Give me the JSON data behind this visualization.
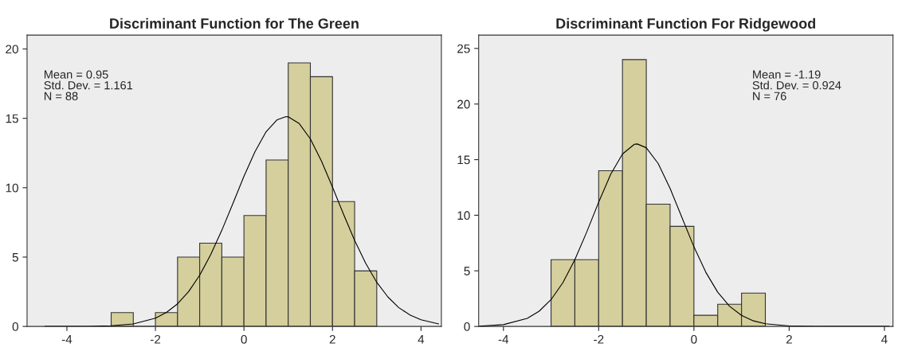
{
  "chart_data": [
    {
      "type": "histogram",
      "title": "Discriminant Function for The Green",
      "bins": [
        -3,
        -2.5,
        -2,
        -1.5,
        -1,
        -0.5,
        0,
        0.5,
        1,
        1.5,
        2,
        2.5,
        3
      ],
      "values": [
        1,
        0,
        1,
        5,
        6,
        5,
        8,
        12,
        19,
        18,
        9,
        4
      ],
      "color": "#d4cf9c",
      "xlim": [
        -4.9,
        4.46
      ],
      "ylim": [
        0,
        21
      ],
      "xticks": [
        -4,
        -2,
        0,
        2,
        4
      ],
      "yticks": [
        0,
        5,
        10,
        15,
        20
      ],
      "annotations": [
        "Mean = 0.95",
        "Std. Dev. = 1.161",
        "N = 88"
      ],
      "series": [
        {
          "type": "line",
          "color": "#000000",
          "x": [
            -4.5,
            -4,
            -3.5,
            -3,
            -2.5,
            -2,
            -1.75,
            -1.5,
            -1.25,
            -1,
            -0.75,
            -0.5,
            -0.25,
            0,
            0.25,
            0.5,
            0.75,
            0.95,
            1,
            1.25,
            1.5,
            1.75,
            2,
            2.25,
            2.5,
            2.75,
            3,
            3.25,
            3.5,
            3.75,
            4,
            4.4
          ],
          "values": [
            0,
            0,
            0.01,
            0.05,
            0.18,
            0.6,
            1.01,
            1.63,
            2.51,
            3.69,
            5.18,
            6.93,
            8.86,
            10.82,
            12.6,
            14.03,
            14.9,
            15.12,
            15.11,
            14.62,
            13.52,
            11.93,
            10.05,
            8.08,
            6.2,
            4.55,
            3.18,
            2.13,
            1.35,
            0.83,
            0.48,
            0.18
          ]
        }
      ]
    },
    {
      "type": "histogram",
      "title": "Discriminant Function For Ridgewood",
      "bins": [
        -3,
        -2.5,
        -2,
        -1.5,
        -1,
        -0.5,
        0,
        0.5,
        1,
        1.5
      ],
      "values": [
        6,
        6,
        14,
        24,
        11,
        9,
        1,
        2,
        3
      ],
      "color": "#d4cf9c",
      "xlim": [
        -4.52,
        4.18
      ],
      "ylim": [
        0,
        26.2
      ],
      "xticks": [
        -4,
        -2,
        0,
        2,
        4
      ],
      "yticks": [
        0,
        5,
        10,
        15,
        20,
        25
      ],
      "annotations": [
        "Mean = -1.19",
        "Std. Dev. = 0.924",
        "N = 76"
      ],
      "series": [
        {
          "type": "line",
          "color": "#000000",
          "x": [
            -4.5,
            -4,
            -3.5,
            -3.25,
            -3,
            -2.75,
            -2.5,
            -2.25,
            -2,
            -1.75,
            -1.5,
            -1.25,
            -1.19,
            -1,
            -0.75,
            -0.5,
            -0.25,
            0,
            0.25,
            0.5,
            0.75,
            1,
            1.25,
            1.5,
            2,
            2.5,
            3,
            4.1
          ],
          "values": [
            0.03,
            0.16,
            0.72,
            1.37,
            2.41,
            3.95,
            6.01,
            8.5,
            11.17,
            13.66,
            15.51,
            16.38,
            16.41,
            16.07,
            14.65,
            12.41,
            9.78,
            7.16,
            4.87,
            3.08,
            1.81,
            0.99,
            0.5,
            0.24,
            0.04,
            0.01,
            0,
            0
          ]
        }
      ]
    }
  ]
}
